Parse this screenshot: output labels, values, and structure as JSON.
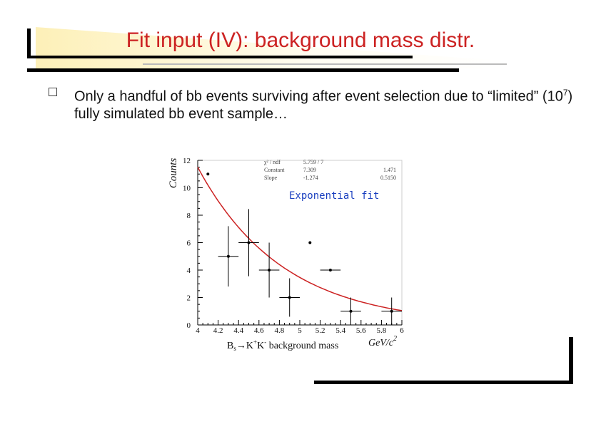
{
  "slide": {
    "title": "Fit input (IV): background mass distr.",
    "bullet": {
      "before": "Only a handful of bb events surviving after event selection due to “limited” (10",
      "sup": "7",
      "after": ") fully simulated bb event sample…"
    }
  },
  "colors": {
    "title": "#cc2222",
    "fit": "#cc2222",
    "annotation": "#1a3fbf"
  },
  "chart_data": {
    "type": "scatter",
    "ylabel": "Counts",
    "xlabel": "B",
    "xlabel_sub": "s",
    "xlabel_rest": "→K",
    "xlabel_sup": "+",
    "xlabel_rest2": "K",
    "xlabel_sup2": "-",
    "xlabel_tail": " background mass",
    "x_unit": "GeV/c",
    "x_unit_sup": "2",
    "xlim": [
      4,
      6
    ],
    "ylim": [
      0,
      12
    ],
    "xticks": [
      "4",
      "4.2",
      "4.4",
      "4.6",
      "4.8",
      "5",
      "5.2",
      "5.4",
      "5.6",
      "5.8",
      "6"
    ],
    "yticks": [
      "0",
      "2",
      "4",
      "6",
      "8",
      "10",
      "12"
    ],
    "points": [
      {
        "x": 4.1,
        "y": 11,
        "xerr": 0,
        "yerr": 0
      },
      {
        "x": 4.3,
        "y": 5,
        "xerr": 0.1,
        "yerr": 2.2
      },
      {
        "x": 4.5,
        "y": 6,
        "xerr": 0.1,
        "yerr": 2.45
      },
      {
        "x": 4.7,
        "y": 4,
        "xerr": 0.1,
        "yerr": 2.0
      },
      {
        "x": 4.9,
        "y": 2,
        "xerr": 0.1,
        "yerr": 1.4
      },
      {
        "x": 5.1,
        "y": 6,
        "xerr": 0,
        "yerr": 0
      },
      {
        "x": 5.3,
        "y": 4,
        "xerr": 0.1,
        "yerr": 0
      },
      {
        "x": 5.5,
        "y": 1,
        "xerr": 0.1,
        "yerr": 1.0
      },
      {
        "x": 5.9,
        "y": 1,
        "xerr": 0.1,
        "yerr": 1.0
      }
    ],
    "fit": {
      "label": "Exponential fit",
      "constant": 7.309,
      "slope": -1.274,
      "x0": 4
    },
    "stats": [
      {
        "name": "χ² / ndf",
        "value": "5.759  /  7",
        "error": ""
      },
      {
        "name": "Constant",
        "value": "7.309",
        "error": "1.471"
      },
      {
        "name": "Slope",
        "value": "-1.274",
        "error": "0.5150"
      }
    ]
  }
}
